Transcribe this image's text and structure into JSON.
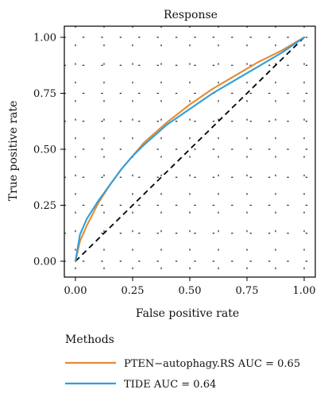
{
  "chart_data": {
    "type": "line",
    "title": "Response",
    "xlabel": "False positive rate",
    "ylabel": "True positive rate",
    "xlim": [
      0,
      1
    ],
    "ylim": [
      0,
      1
    ],
    "xticks": [
      0,
      0.25,
      0.5,
      0.75,
      1
    ],
    "yticks": [
      0,
      0.25,
      0.5,
      0.75,
      1
    ],
    "xtick_labels": [
      "0.00",
      "0.25",
      "0.50",
      "0.75",
      "1.00"
    ],
    "ytick_labels": [
      "0.00",
      "0.25",
      "0.50",
      "0.75",
      "1.00"
    ],
    "grid": true,
    "legend_title": "Methods",
    "legend_position": "bottom",
    "reference_line": {
      "x": [
        0,
        1
      ],
      "y": [
        0,
        1
      ],
      "style": "dashed",
      "color": "#000000"
    },
    "series": [
      {
        "name": "PTEN−autophagy.RS AUC = 0.65",
        "color": "#E58A30",
        "x": [
          0.0,
          0.02,
          0.05,
          0.1,
          0.15,
          0.2,
          0.25,
          0.3,
          0.4,
          0.5,
          0.6,
          0.7,
          0.8,
          0.9,
          1.0
        ],
        "y": [
          0.0,
          0.09,
          0.16,
          0.26,
          0.34,
          0.41,
          0.47,
          0.53,
          0.62,
          0.7,
          0.77,
          0.83,
          0.89,
          0.94,
          1.0
        ]
      },
      {
        "name": "TIDE AUC = 0.64",
        "color": "#2E9FD8",
        "x": [
          0.0,
          0.02,
          0.05,
          0.1,
          0.15,
          0.2,
          0.25,
          0.3,
          0.4,
          0.5,
          0.6,
          0.7,
          0.8,
          0.9,
          1.0
        ],
        "y": [
          0.0,
          0.12,
          0.19,
          0.27,
          0.34,
          0.41,
          0.47,
          0.52,
          0.61,
          0.68,
          0.75,
          0.81,
          0.87,
          0.93,
          1.0
        ]
      }
    ]
  }
}
